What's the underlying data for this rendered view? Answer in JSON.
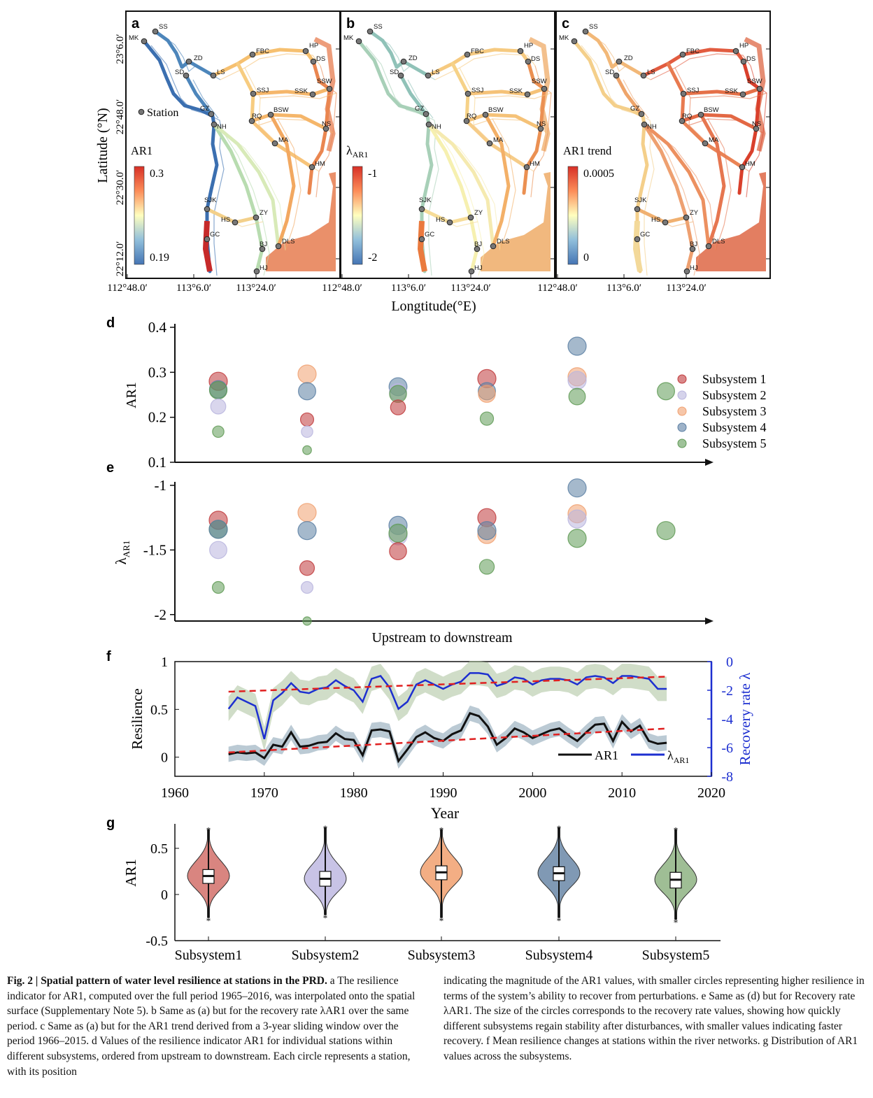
{
  "maps": {
    "panels": [
      {
        "letter": "a",
        "legend_title": "AR1",
        "legend_max": "0.3",
        "legend_min": "0.19",
        "station_label": "Station",
        "mode": "ar1"
      },
      {
        "letter": "b",
        "legend_title": "λAR1",
        "legend_max": "-1",
        "legend_min": "-2",
        "station_label": "",
        "mode": "lambda"
      },
      {
        "letter": "c",
        "legend_title": "AR1 trend",
        "legend_max": "0.0005",
        "legend_min": "0",
        "station_label": "",
        "mode": "trend"
      }
    ],
    "y_axis_label": "Latitude (°N)",
    "y_ticks": [
      "23°6.0′",
      "22°48.0′",
      "22°30.0′",
      "22°12.0′"
    ],
    "x_ticks": [
      "112°48.0′",
      "113°6.0′",
      "113°24.0′"
    ],
    "x_axis_label": "Longtitude(°E)",
    "stations": [
      {
        "id": "MK",
        "label": "MK"
      },
      {
        "id": "SS",
        "label": "SS"
      },
      {
        "id": "ZD",
        "label": "ZD"
      },
      {
        "id": "SD",
        "label": "SD"
      },
      {
        "id": "LS",
        "label": "LS"
      },
      {
        "id": "FBC",
        "label": "FBC"
      },
      {
        "id": "HP",
        "label": "HP"
      },
      {
        "id": "DS",
        "label": "DS"
      },
      {
        "id": "SSJ",
        "label": "SSJ"
      },
      {
        "id": "SSK",
        "label": "SSK"
      },
      {
        "id": "SSW",
        "label": "SSW"
      },
      {
        "id": "GZ",
        "label": "GZ"
      },
      {
        "id": "NH",
        "label": "NH"
      },
      {
        "id": "RQ",
        "label": "RQ"
      },
      {
        "id": "BSW",
        "label": "BSW"
      },
      {
        "id": "NS",
        "label": "NS"
      },
      {
        "id": "MA",
        "label": "MA"
      },
      {
        "id": "HM",
        "label": "HM"
      },
      {
        "id": "SJK",
        "label": "SJK"
      },
      {
        "id": "ZY",
        "label": "ZY"
      },
      {
        "id": "HS",
        "label": "HS"
      },
      {
        "id": "GC",
        "label": "GC"
      },
      {
        "id": "BJ",
        "label": "BJ"
      },
      {
        "id": "DLS",
        "label": "DLS"
      },
      {
        "id": "HJ",
        "label": "HJ"
      }
    ]
  },
  "chart_data": [
    {
      "panel": "d",
      "type": "scatter",
      "ylabel": "AR1",
      "ylim": [
        0.1,
        0.4
      ],
      "yticks": [
        "0.4",
        "0.3",
        "0.2",
        "0.1"
      ],
      "legend": [
        "Subsystem 1",
        "Subsystem 2",
        "Subsystem 3",
        "Subsystem 4",
        "Subsystem 5"
      ],
      "colors": [
        "#c0393b",
        "#b9b5de",
        "#f0a070",
        "#5b7fa3",
        "#5f9a55"
      ],
      "points": [
        {
          "g": 1,
          "s": 1,
          "y": 0.28
        },
        {
          "g": 1,
          "s": 4,
          "y": 0.262
        },
        {
          "g": 1,
          "s": 5,
          "y": 0.26
        },
        {
          "g": 1,
          "s": 2,
          "y": 0.224
        },
        {
          "g": 1,
          "s": 5,
          "y": 0.168
        },
        {
          "g": 2,
          "s": 3,
          "y": 0.296
        },
        {
          "g": 2,
          "s": 4,
          "y": 0.258
        },
        {
          "g": 2,
          "s": 1,
          "y": 0.195
        },
        {
          "g": 2,
          "s": 2,
          "y": 0.168
        },
        {
          "g": 2,
          "s": 5,
          "y": 0.127
        },
        {
          "g": 3,
          "s": 4,
          "y": 0.268
        },
        {
          "g": 3,
          "s": 2,
          "y": 0.256
        },
        {
          "g": 3,
          "s": 5,
          "y": 0.252
        },
        {
          "g": 3,
          "s": 1,
          "y": 0.222
        },
        {
          "g": 4,
          "s": 1,
          "y": 0.286
        },
        {
          "g": 4,
          "s": 4,
          "y": 0.258
        },
        {
          "g": 4,
          "s": 3,
          "y": 0.252
        },
        {
          "g": 4,
          "s": 5,
          "y": 0.197
        },
        {
          "g": 5,
          "s": 4,
          "y": 0.358
        },
        {
          "g": 5,
          "s": 3,
          "y": 0.29
        },
        {
          "g": 5,
          "s": 2,
          "y": 0.282
        },
        {
          "g": 5,
          "s": 5,
          "y": 0.246
        },
        {
          "g": 6,
          "s": 5,
          "y": 0.258
        }
      ]
    },
    {
      "panel": "e",
      "type": "scatter",
      "ylabel": "λAR1",
      "ylim": [
        -2.05,
        -1
      ],
      "yticks": [
        "-1",
        "-1.5",
        "-2"
      ],
      "xlabel": "Upstream to downstream",
      "points": [
        {
          "g": 1,
          "s": 1,
          "y": -1.27
        },
        {
          "g": 1,
          "s": 5,
          "y": -1.34
        },
        {
          "g": 1,
          "s": 4,
          "y": -1.34
        },
        {
          "g": 1,
          "s": 2,
          "y": -1.5
        },
        {
          "g": 1,
          "s": 5,
          "y": -1.79
        },
        {
          "g": 2,
          "s": 3,
          "y": -1.21
        },
        {
          "g": 2,
          "s": 4,
          "y": -1.35
        },
        {
          "g": 2,
          "s": 1,
          "y": -1.64
        },
        {
          "g": 2,
          "s": 2,
          "y": -1.79
        },
        {
          "g": 2,
          "s": 5,
          "y": -2.05
        },
        {
          "g": 3,
          "s": 4,
          "y": -1.31
        },
        {
          "g": 3,
          "s": 2,
          "y": -1.39
        },
        {
          "g": 3,
          "s": 5,
          "y": -1.37
        },
        {
          "g": 3,
          "s": 1,
          "y": -1.51
        },
        {
          "g": 4,
          "s": 1,
          "y": -1.25
        },
        {
          "g": 4,
          "s": 3,
          "y": -1.38
        },
        {
          "g": 4,
          "s": 4,
          "y": -1.35
        },
        {
          "g": 4,
          "s": 5,
          "y": -1.63
        },
        {
          "g": 5,
          "s": 4,
          "y": -1.02
        },
        {
          "g": 5,
          "s": 3,
          "y": -1.22
        },
        {
          "g": 5,
          "s": 2,
          "y": -1.26
        },
        {
          "g": 5,
          "s": 5,
          "y": -1.41
        },
        {
          "g": 6,
          "s": 5,
          "y": -1.35
        }
      ]
    },
    {
      "panel": "f",
      "type": "line",
      "xlabel": "Year",
      "ylabel": "Resilience",
      "y2label": "Recovery rate λ",
      "xlim": [
        1960,
        2020
      ],
      "ylim": [
        -0.2,
        1
      ],
      "y2lim": [
        -8,
        0
      ],
      "xticks": [
        "1960",
        "1970",
        "1980",
        "1990",
        "2000",
        "2010",
        "2020"
      ],
      "yticks": [
        "1",
        "0.5",
        "0"
      ],
      "y2ticks": [
        "0",
        "-2",
        "-4",
        "-6",
        "-8"
      ],
      "legend": [
        "AR1",
        "λAR1"
      ],
      "x": [
        1966,
        1967,
        1968,
        1969,
        1970,
        1971,
        1972,
        1973,
        1974,
        1975,
        1976,
        1977,
        1978,
        1979,
        1980,
        1981,
        1982,
        1983,
        1984,
        1985,
        1986,
        1987,
        1988,
        1989,
        1990,
        1991,
        1992,
        1993,
        1994,
        1995,
        1996,
        1997,
        1998,
        1999,
        2000,
        2001,
        2002,
        2003,
        2004,
        2005,
        2006,
        2007,
        2008,
        2009,
        2010,
        2011,
        2012,
        2013,
        2014,
        2015
      ],
      "ar1": [
        0.03,
        0.05,
        0.04,
        0.05,
        -0.01,
        0.13,
        0.11,
        0.26,
        0.11,
        0.12,
        0.15,
        0.16,
        0.25,
        0.19,
        0.18,
        0.02,
        0.28,
        0.29,
        0.27,
        -0.04,
        0.08,
        0.21,
        0.26,
        0.2,
        0.17,
        0.24,
        0.28,
        0.46,
        0.43,
        0.32,
        0.13,
        0.2,
        0.3,
        0.26,
        0.2,
        0.24,
        0.28,
        0.3,
        0.23,
        0.17,
        0.26,
        0.34,
        0.35,
        0.17,
        0.37,
        0.27,
        0.33,
        0.17,
        0.14,
        0.15
      ],
      "lambda": [
        -3.3,
        -2.5,
        -2.8,
        -3.1,
        -5.4,
        -2.7,
        -2.2,
        -1.5,
        -2.1,
        -2.2,
        -1.9,
        -1.8,
        -1.3,
        -1.7,
        -2.0,
        -2.8,
        -1.2,
        -1.0,
        -1.8,
        -3.3,
        -2.8,
        -1.6,
        -1.3,
        -1.6,
        -1.9,
        -1.6,
        -1.4,
        -0.8,
        -0.8,
        -0.9,
        -1.7,
        -1.5,
        -1.1,
        -1.2,
        -1.6,
        -1.3,
        -1.2,
        -1.2,
        -1.3,
        -1.6,
        -1.1,
        -1.0,
        -1.1,
        -1.5,
        -1.0,
        -1.0,
        -1.1,
        -1.2,
        -1.9,
        -1.9
      ],
      "ar1_trend": [
        0.05,
        0.3
      ],
      "lambda_trend": [
        -2.1,
        -1.05
      ]
    },
    {
      "panel": "g",
      "type": "violin",
      "ylabel": "AR1",
      "ylim": [
        -0.5,
        0.75
      ],
      "yticks": [
        "0.5",
        "0",
        "-0.5"
      ],
      "categories": [
        "Subsystem1",
        "Subsystem2",
        "Subsystem3",
        "Subsystem4",
        "Subsystem5"
      ],
      "median": [
        0.2,
        0.17,
        0.24,
        0.23,
        0.16
      ],
      "q1": [
        0.12,
        0.09,
        0.16,
        0.15,
        0.07
      ],
      "q3": [
        0.27,
        0.25,
        0.31,
        0.3,
        0.24
      ],
      "whisker_low": [
        -0.25,
        -0.22,
        -0.25,
        -0.25,
        -0.27
      ],
      "whisker_high": [
        0.7,
        0.72,
        0.7,
        0.72,
        0.7
      ]
    }
  ],
  "panel_letters": {
    "d": "d",
    "e": "e",
    "f": "f",
    "g": "g"
  },
  "caption": {
    "left_lead": "Fig. 2 | Spatial pattern of water level resilience at stations in the PRD.",
    "left_text_a": " a The resilience indicator for AR1, computed over the full period 1965–2016, was interpolated onto the spatial surface (Supplementary Note 5). ",
    "left_text_b": "b Same as (a) but for the recovery rate λAR1 over the same period. ",
    "left_text_c": "c Same as (a) but for the AR1 trend derived from a 3-year sliding window over the period 1966–2015. ",
    "left_text_d": "d Values of the resilience indicator AR1 for individual stations within different subsystems, ordered from upstream to downstream. Each circle represents a station, with its position",
    "right_text_1": "indicating the magnitude of the AR1 values, with smaller circles representing higher resilience in terms of the system’s ability to recover from perturbations. ",
    "right_text_e": "e Same as (d) but for Recovery rate λAR1. The size of the circles corresponds to the recovery rate values, showing how quickly different subsystems regain stability after disturbances, with smaller values indicating faster recovery. ",
    "right_text_f": "f Mean resilience changes at stations within the river networks. ",
    "right_text_g": "g Distribution of AR1 values across the subsystems."
  }
}
